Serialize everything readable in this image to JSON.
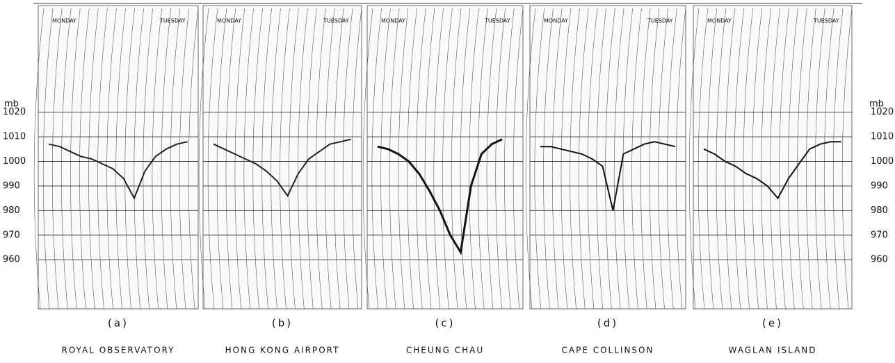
{
  "axis": {
    "label": "mb",
    "ylim": [
      940,
      1060
    ],
    "yticks": [
      960,
      970,
      980,
      990,
      1000,
      1010,
      1020
    ]
  },
  "chart_data": [
    {
      "type": "line",
      "title": "(a)",
      "subtitle": "ROYAL OBSERVATORY",
      "day_labels": [
        "MONDAY",
        "TUESDAY"
      ],
      "categories": [
        null,
        null,
        null,
        null,
        null,
        null,
        null,
        null,
        null,
        null,
        null,
        null,
        null,
        null,
        null,
        null
      ],
      "series": [
        {
          "color": "#222222",
          "values": [
            null,
            1007,
            1006,
            1004,
            1002,
            1001,
            999,
            997,
            993,
            985,
            996,
            1002,
            1005,
            1007,
            1008,
            null
          ]
        }
      ]
    },
    {
      "type": "line",
      "title": "(b)",
      "subtitle": "HONG KONG AIRPORT",
      "day_labels": [
        "MONDAY",
        "TUESDAY"
      ],
      "categories": [
        null,
        null,
        null,
        null,
        null,
        null,
        null,
        null,
        null,
        null,
        null,
        null,
        null,
        null,
        null,
        null
      ],
      "series": [
        {
          "color": "#222222",
          "values": [
            null,
            1007,
            1005,
            1003,
            1001,
            999,
            996,
            992,
            986,
            995,
            1001,
            1004,
            1007,
            1008,
            1009,
            null
          ]
        }
      ]
    },
    {
      "type": "line",
      "title": "(c)",
      "subtitle": "CHEUNG CHAU",
      "day_labels": [
        "MONDAY",
        "TUESDAY"
      ],
      "categories": [
        null,
        null,
        null,
        null,
        null,
        null,
        null,
        null,
        null,
        null,
        null,
        null,
        null,
        null,
        null,
        null
      ],
      "series": [
        {
          "color": "#111111",
          "values": [
            null,
            1006,
            1005,
            1003,
            1000,
            995,
            988,
            980,
            970,
            963,
            990,
            1003,
            1007,
            1009,
            null,
            null
          ]
        }
      ]
    },
    {
      "type": "line",
      "title": "(d)",
      "subtitle": "CAPE COLLINSON",
      "day_labels": [
        "MONDAY",
        "TUESDAY"
      ],
      "categories": [
        null,
        null,
        null,
        null,
        null,
        null,
        null,
        null,
        null,
        null,
        null,
        null,
        null,
        null,
        null,
        null
      ],
      "series": [
        {
          "color": "#111111",
          "values": [
            null,
            1006,
            1006,
            1005,
            1004,
            1003,
            1001,
            998,
            980,
            1003,
            1005,
            1007,
            1008,
            1007,
            1006,
            null
          ]
        }
      ]
    },
    {
      "type": "line",
      "title": "(e)",
      "subtitle": "WAGLAN ISLAND",
      "day_labels": [
        "MONDAY",
        "TUESDAY"
      ],
      "categories": [
        null,
        null,
        null,
        null,
        null,
        null,
        null,
        null,
        null,
        null,
        null,
        null,
        null,
        null,
        null,
        null
      ],
      "series": [
        {
          "color": "#111111",
          "values": [
            null,
            1005,
            1003,
            1000,
            998,
            995,
            993,
            990,
            985,
            993,
            999,
            1005,
            1007,
            1008,
            1008,
            null
          ]
        }
      ]
    }
  ]
}
